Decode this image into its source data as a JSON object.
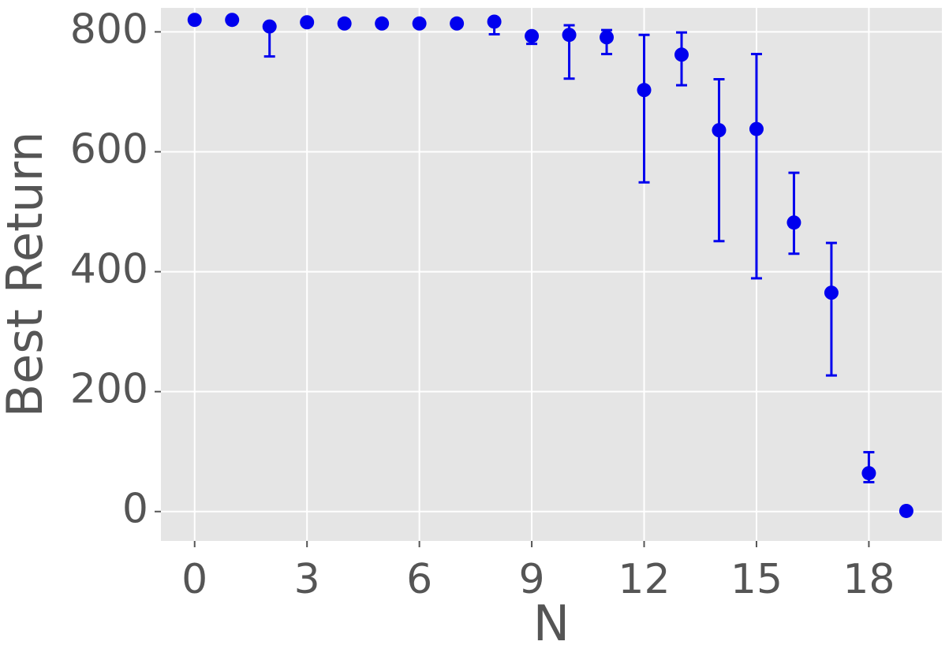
{
  "chart_data": {
    "type": "errorbar",
    "x_label": "N",
    "y_label": "Best Return",
    "x": [
      0,
      1,
      2,
      3,
      4,
      5,
      6,
      7,
      8,
      9,
      10,
      11,
      12,
      13,
      14,
      15,
      16,
      17,
      18,
      19
    ],
    "series": [
      {
        "color": "#0000ee",
        "values": [
          820,
          820,
          809,
          816,
          814,
          814,
          814,
          814,
          817,
          793,
          795,
          791,
          703,
          762,
          636,
          638,
          482,
          365,
          64,
          1
        ],
        "err_low": [
          null,
          null,
          50,
          null,
          null,
          null,
          null,
          null,
          21,
          13,
          73,
          28,
          154,
          51,
          185,
          249,
          52,
          138,
          15,
          null
        ],
        "err_high": [
          null,
          null,
          0,
          null,
          null,
          null,
          null,
          null,
          0,
          0,
          16,
          12,
          92,
          37,
          85,
          125,
          83,
          83,
          35,
          null
        ]
      }
    ],
    "xlim": [
      -0.9,
      19.95
    ],
    "ylim": [
      -49,
      840
    ],
    "xticks": [
      0,
      3,
      6,
      9,
      12,
      15,
      18
    ],
    "yticks": [
      0,
      200,
      400,
      600,
      800
    ],
    "grid": true
  }
}
